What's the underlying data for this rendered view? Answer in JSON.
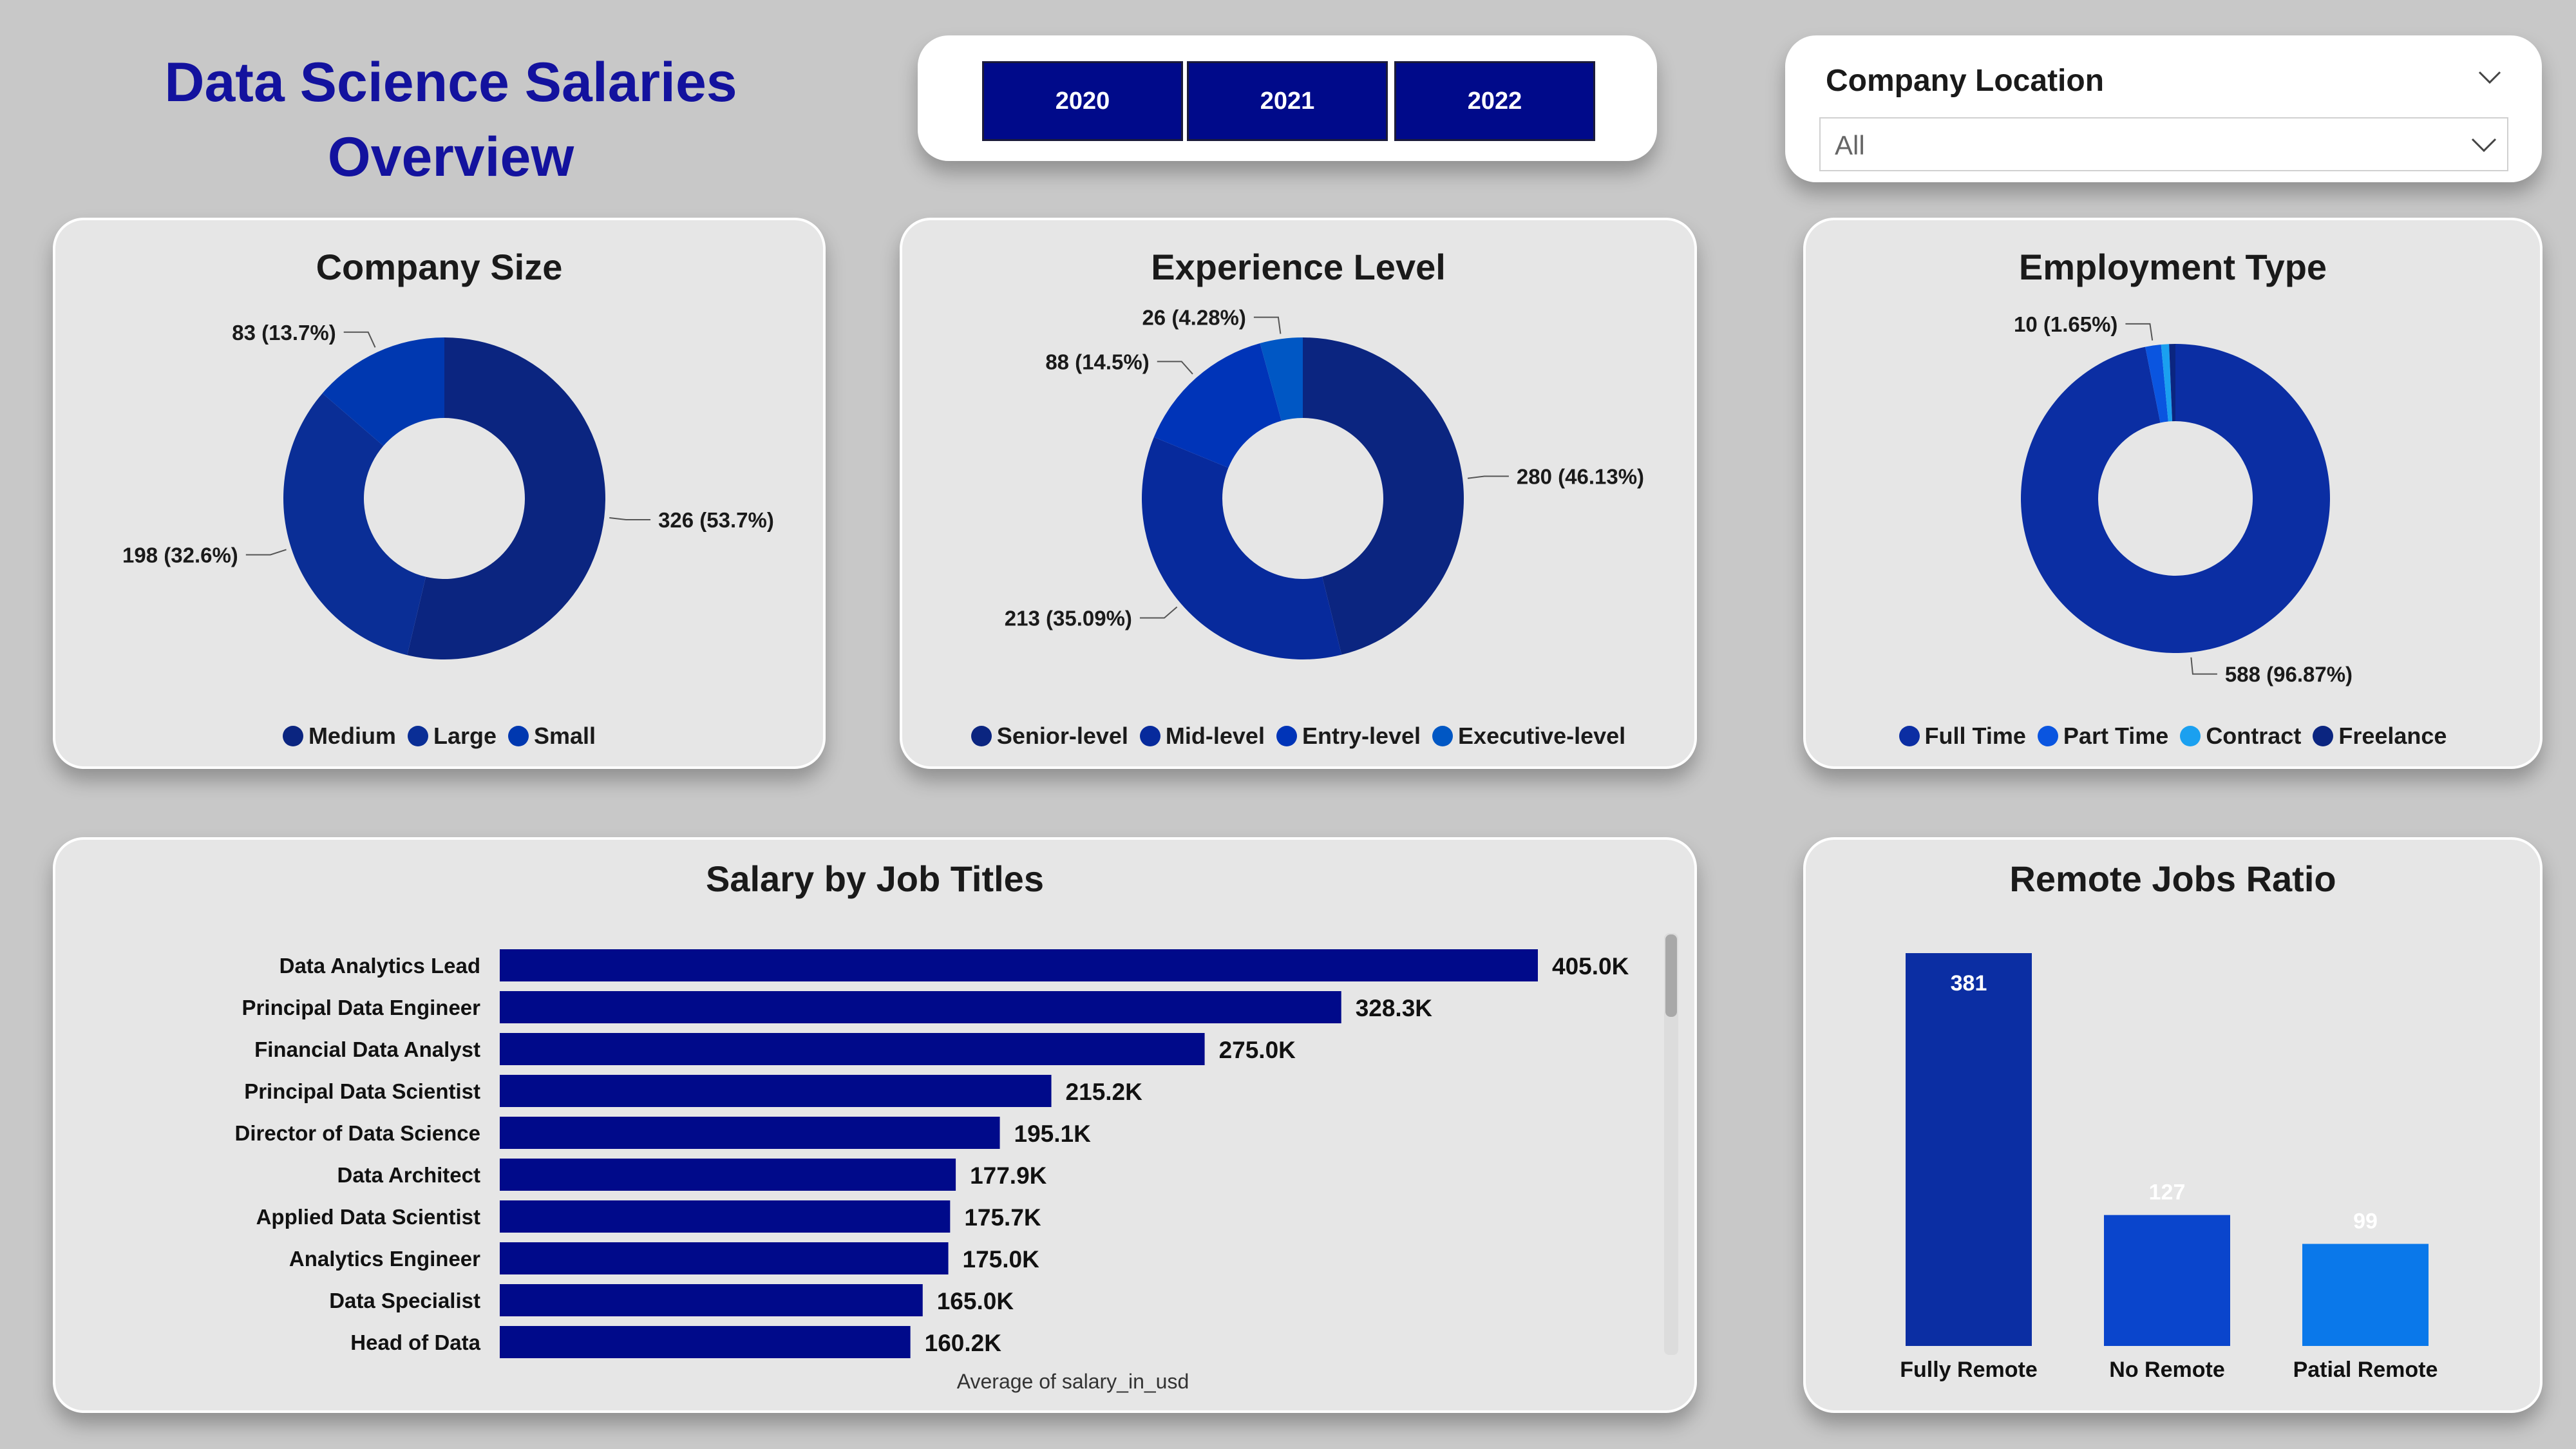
{
  "header": {
    "title_line1": "Data Science Salaries",
    "title_line2": "Overview"
  },
  "year_slicer": {
    "years": [
      "2020",
      "2021",
      "2022"
    ]
  },
  "location_filter": {
    "label": "Company Location",
    "value": "All"
  },
  "colors": {
    "title": "#13129e",
    "bar": "#000a8a",
    "card": "#e6e6e6",
    "background": "#c8c8c8"
  },
  "chart_data": [
    {
      "id": "company_size",
      "type": "pie",
      "title": "Company Size",
      "categories": [
        "Medium",
        "Large",
        "Small"
      ],
      "values": [
        326,
        198,
        83
      ],
      "labels": [
        "326 (53.7%)",
        "198 (32.6%)",
        "83 (13.7%)"
      ],
      "colors": [
        "#0b2580",
        "#0a2e96",
        "#0038b0"
      ],
      "legend": [
        "Medium",
        "Large",
        "Small"
      ],
      "legend_colors": [
        "#0b2580",
        "#0a2e96",
        "#0038b0"
      ]
    },
    {
      "id": "experience_level",
      "type": "pie",
      "title": "Experience Level",
      "categories": [
        "Senior-level",
        "Mid-level",
        "Entry-level",
        "Executive-level"
      ],
      "values": [
        280,
        213,
        88,
        26
      ],
      "labels": [
        "280 (46.13%)",
        "213 (35.09%)",
        "88 (14.5%)",
        "26 (4.28%)"
      ],
      "colors": [
        "#0b2580",
        "#072a9c",
        "#0034b8",
        "#0057c4"
      ],
      "legend": [
        "Senior-level",
        "Mid-level",
        "Entry-level",
        "Executive-level"
      ],
      "legend_colors": [
        "#0b2580",
        "#072a9c",
        "#0034b8",
        "#0057c4"
      ]
    },
    {
      "id": "employment_type",
      "type": "pie",
      "title": "Employment Type",
      "categories": [
        "Full Time",
        "Part Time",
        "Contract",
        "Freelance"
      ],
      "values": [
        588,
        10,
        5,
        4
      ],
      "labels": [
        "588 (96.87%)",
        "10 (1.65%)",
        "",
        ""
      ],
      "colors": [
        "#0b2ea3",
        "#0a55e0",
        "#1aa0f0",
        "#0b2580"
      ],
      "legend": [
        "Full Time",
        "Part Time",
        "Contract",
        "Freelance"
      ],
      "legend_colors": [
        "#0b2ea3",
        "#0a55e0",
        "#1aa0f0",
        "#0b2580"
      ]
    },
    {
      "id": "salary_by_job",
      "type": "bar",
      "title": "Salary by Job Titles",
      "xlabel": "Average of salary_in_usd",
      "categories": [
        "Data Analytics Lead",
        "Principal Data Engineer",
        "Financial Data Analyst",
        "Principal Data Scientist",
        "Director of Data Science",
        "Data Architect",
        "Applied Data Scientist",
        "Analytics Engineer",
        "Data Specialist",
        "Head of Data"
      ],
      "values": [
        405000,
        328300,
        275000,
        215200,
        195100,
        177900,
        175700,
        175000,
        165000,
        160200
      ],
      "value_labels": [
        "405.0K",
        "328.3K",
        "275.0K",
        "215.2K",
        "195.1K",
        "177.9K",
        "175.7K",
        "175.0K",
        "165.0K",
        "160.2K"
      ],
      "xlim": [
        0,
        405000
      ]
    },
    {
      "id": "remote_ratio",
      "type": "bar",
      "title": "Remote Jobs Ratio",
      "categories": [
        "Fully Remote",
        "No Remote",
        "Patial Remote"
      ],
      "values": [
        381,
        127,
        99
      ],
      "colors": [
        "#0b2ea3",
        "#0a45cc",
        "#0a78ea"
      ],
      "ylim": [
        0,
        381
      ]
    }
  ]
}
